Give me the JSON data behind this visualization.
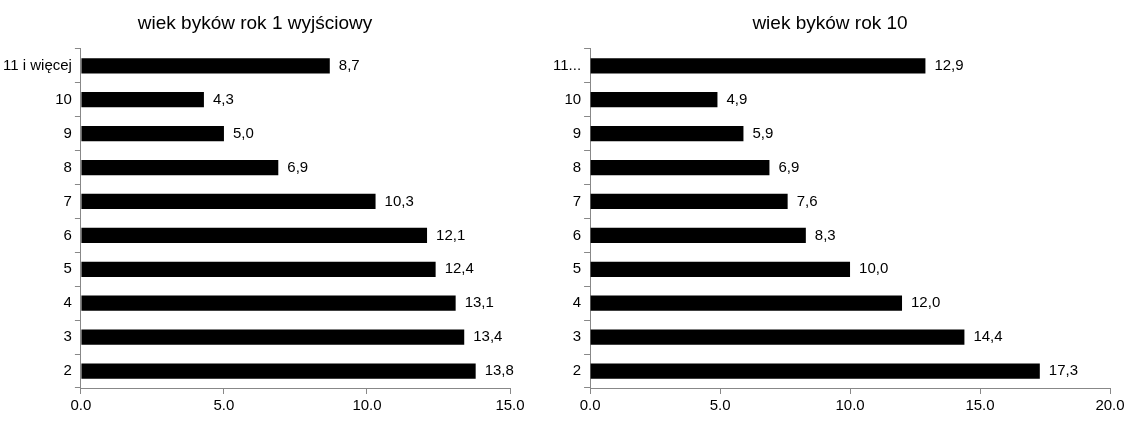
{
  "chart_data": [
    {
      "type": "bar",
      "orientation": "horizontal",
      "title": "wiek byków rok 1 wyjściowy",
      "categories": [
        "11 i więcej",
        "10",
        "9",
        "8",
        "7",
        "6",
        "5",
        "4",
        "3",
        "2"
      ],
      "values": [
        8.7,
        4.3,
        5.0,
        6.9,
        10.3,
        12.1,
        12.4,
        13.1,
        13.4,
        13.8
      ],
      "value_labels": [
        "8,7",
        "4,3",
        "5,0",
        "6,9",
        "10,3",
        "12,1",
        "12,4",
        "13,1",
        "13,4",
        "13,8"
      ],
      "color": "#000000",
      "xlim": [
        0,
        15
      ],
      "xticks": [
        {
          "value": 0,
          "label": "0.0"
        },
        {
          "value": 5,
          "label": "5.0"
        },
        {
          "value": 10,
          "label": "10.0"
        },
        {
          "value": 15,
          "label": "15.0"
        }
      ]
    },
    {
      "type": "bar",
      "orientation": "horizontal",
      "title": "wiek byków rok 10",
      "categories": [
        "11...",
        "10",
        "9",
        "8",
        "7",
        "6",
        "5",
        "4",
        "3",
        "2"
      ],
      "values": [
        12.9,
        4.9,
        5.9,
        6.9,
        7.6,
        8.3,
        10.0,
        12.0,
        14.4,
        17.3
      ],
      "value_labels": [
        "12,9",
        "4,9",
        "5,9",
        "6,9",
        "7,6",
        "8,3",
        "10,0",
        "12,0",
        "14,4",
        "17,3"
      ],
      "color": "#000000",
      "xlim": [
        0,
        20
      ],
      "xticks": [
        {
          "value": 0,
          "label": "0.0"
        },
        {
          "value": 5,
          "label": "5.0"
        },
        {
          "value": 10,
          "label": "10.0"
        },
        {
          "value": 15,
          "label": "15.0"
        },
        {
          "value": 20,
          "label": "20.0"
        }
      ]
    }
  ]
}
